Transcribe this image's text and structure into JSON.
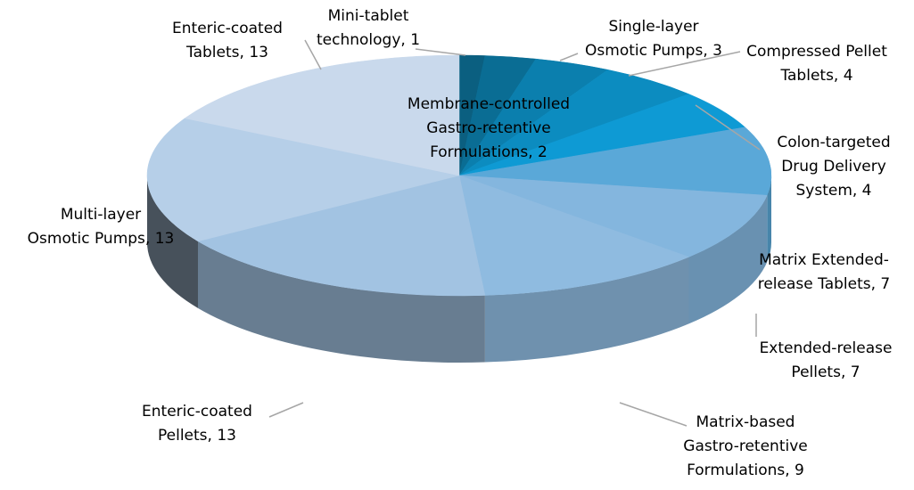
{
  "chart_data": {
    "type": "pie",
    "values": [
      1,
      2,
      3,
      4,
      4,
      7,
      7,
      9,
      13,
      13,
      13
    ],
    "value_labels": [
      "Mini-tablet\ntechnology, 1",
      "Membrane-controlled\nGastro-retentive\nFormulations, 2",
      "Single-layer\nOsmotic Pumps, 3",
      "Compressed Pellet\nTablets, 4",
      "Colon-targeted\nDrug Delivery\nSystem, 4",
      "Matrix Extended-\nrelease Tablets, 7",
      "Extended-release\nPellets, 7",
      "Matrix-based\nGastro-retentive\nFormulations, 9",
      "Enteric-coated\nPellets, 13",
      "Multi-layer\nOsmotic Pumps, 13",
      "Enteric-coated\nTablets, 13"
    ],
    "colors": [
      "#0b5f80",
      "#0a6d94",
      "#0b7fae",
      "#0c8cc0",
      "#0e9ad4",
      "#5aa8d8",
      "#84b6de",
      "#8fbbe0",
      "#a2c3e2",
      "#b6cfe8",
      "#c9d9ec"
    ]
  }
}
